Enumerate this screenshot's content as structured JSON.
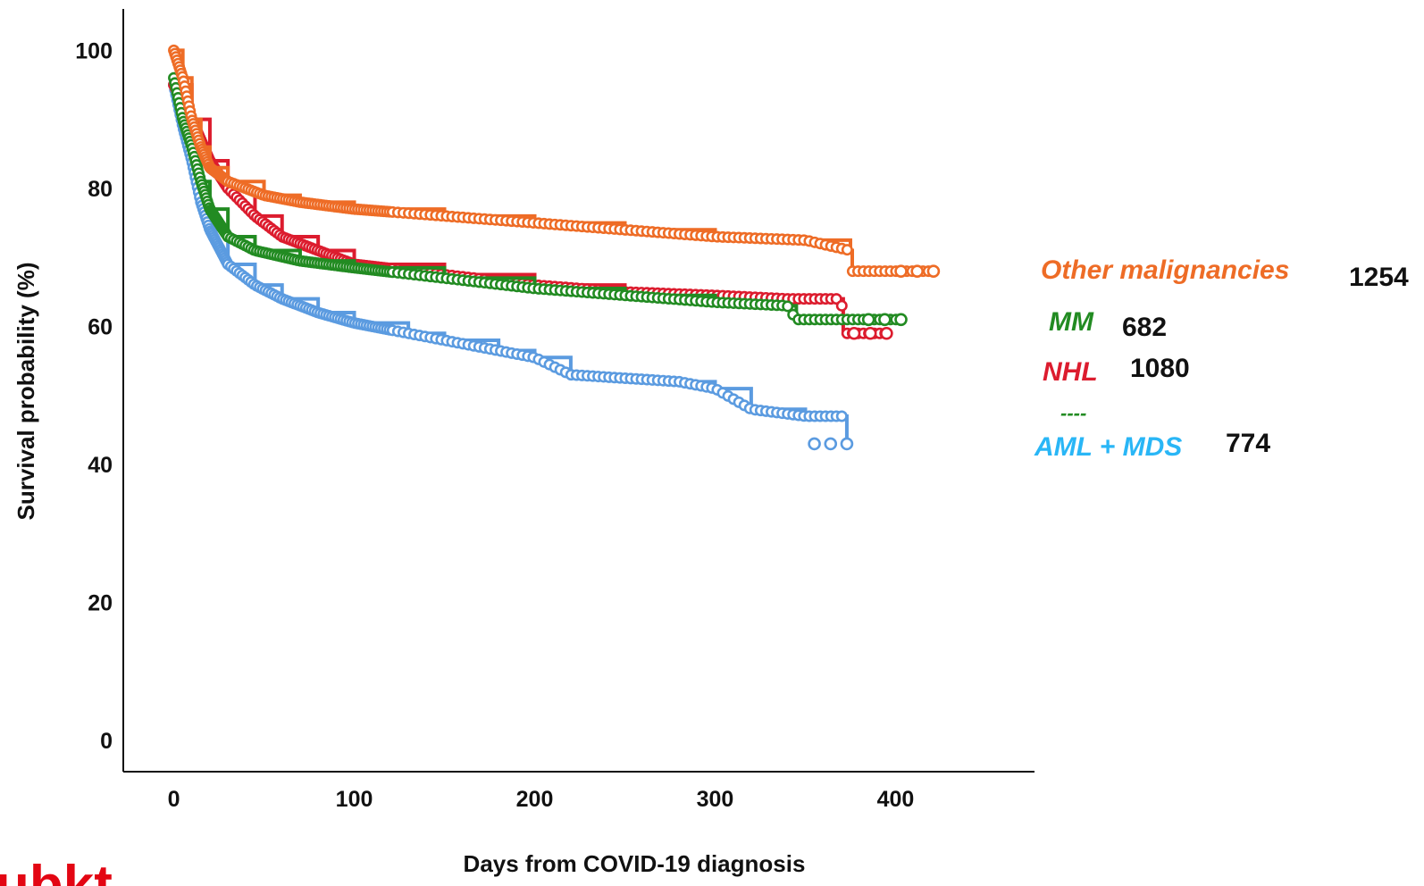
{
  "colors": {
    "other": "#ee6c26",
    "mm": "#228b22",
    "nhl": "#dc1c2e",
    "aml": "#5b9be0",
    "aml_label": "#29b6f6",
    "logo": "#e30613"
  },
  "logo": {
    "text": "ubkt"
  },
  "chart_data": {
    "type": "line",
    "xlabel": "Days from COVID-19 diagnosis",
    "ylabel": "Survival probability (%)",
    "xlim": [
      -28,
      477
    ],
    "ylim": [
      -4.5,
      106
    ],
    "x_ticks": [
      0,
      100,
      200,
      300,
      400
    ],
    "y_ticks": [
      0,
      20,
      40,
      60,
      80,
      100
    ],
    "grid": false,
    "legend_position": "right",
    "series": [
      {
        "key": "other",
        "name": "Other malignancies",
        "count": "1254",
        "points": [
          [
            0,
            100
          ],
          [
            5,
            96
          ],
          [
            10,
            90
          ],
          [
            15,
            86
          ],
          [
            20,
            83
          ],
          [
            30,
            81
          ],
          [
            50,
            79
          ],
          [
            70,
            78
          ],
          [
            100,
            77
          ],
          [
            150,
            76
          ],
          [
            200,
            75
          ],
          [
            250,
            74
          ],
          [
            300,
            73
          ],
          [
            350,
            72.5
          ],
          [
            375,
            71
          ],
          [
            376,
            68
          ],
          [
            385,
            68
          ],
          [
            421,
            68
          ]
        ]
      },
      {
        "key": "mm",
        "name": "MM",
        "count": "682",
        "points": [
          [
            0,
            96
          ],
          [
            5,
            90
          ],
          [
            10,
            86
          ],
          [
            15,
            81
          ],
          [
            20,
            77
          ],
          [
            30,
            73
          ],
          [
            45,
            71
          ],
          [
            70,
            69.5
          ],
          [
            100,
            68.5
          ],
          [
            150,
            67
          ],
          [
            200,
            65.5
          ],
          [
            250,
            64.5
          ],
          [
            300,
            63.5
          ],
          [
            340,
            63
          ],
          [
            345,
            61
          ],
          [
            375,
            61
          ],
          [
            403,
            61
          ]
        ]
      },
      {
        "key": "nhl",
        "name": "NHL",
        "count": "1080",
        "points": [
          [
            0,
            95
          ],
          [
            10,
            90
          ],
          [
            20,
            84
          ],
          [
            30,
            80
          ],
          [
            45,
            76
          ],
          [
            60,
            73
          ],
          [
            80,
            71
          ],
          [
            100,
            69
          ],
          [
            150,
            67.5
          ],
          [
            200,
            66
          ],
          [
            250,
            65
          ],
          [
            300,
            64.5
          ],
          [
            340,
            64
          ],
          [
            370,
            64
          ],
          [
            371,
            59
          ],
          [
            395,
            59
          ]
        ]
      },
      {
        "key": "aml",
        "name": "AML + MDS",
        "count": "774",
        "legend_dash": "----",
        "points": [
          [
            0,
            95
          ],
          [
            5,
            89
          ],
          [
            10,
            84
          ],
          [
            15,
            78
          ],
          [
            20,
            74
          ],
          [
            30,
            69
          ],
          [
            45,
            66
          ],
          [
            60,
            64
          ],
          [
            80,
            62
          ],
          [
            100,
            60.5
          ],
          [
            130,
            59
          ],
          [
            150,
            58
          ],
          [
            180,
            56.5
          ],
          [
            200,
            55.5
          ],
          [
            220,
            53
          ],
          [
            250,
            52.5
          ],
          [
            280,
            52
          ],
          [
            300,
            51
          ],
          [
            320,
            48
          ],
          [
            350,
            47
          ],
          [
            373,
            47
          ],
          [
            373,
            43
          ]
        ]
      }
    ]
  }
}
